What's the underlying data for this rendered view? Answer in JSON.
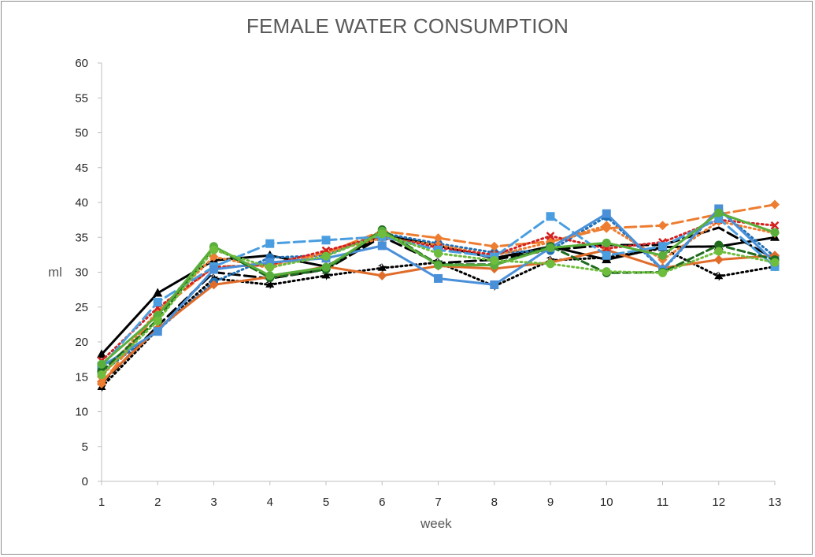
{
  "chart_data": {
    "type": "line",
    "title": "FEMALE WATER CONSUMPTION",
    "xlabel": "week",
    "ylabel": "ml",
    "ylim": [
      0,
      60
    ],
    "yticks": [
      "0",
      "5",
      "10",
      "15",
      "20",
      "25",
      "30",
      "35",
      "40",
      "45",
      "50",
      "55",
      "60"
    ],
    "grid": false,
    "categories": [
      "1",
      "2",
      "3",
      "4",
      "5",
      "6",
      "7",
      "8",
      "9",
      "10",
      "11",
      "12",
      "13"
    ],
    "series": [
      {
        "color": "#000000",
        "dash": "solid",
        "marker": "triangle",
        "values": [
          18.2,
          27.0,
          31.7,
          32.4,
          30.8,
          35.4,
          33.8,
          32.0,
          33.7,
          31.8,
          33.6,
          33.7,
          35.0
        ]
      },
      {
        "color": "#000000",
        "dash": "dot",
        "marker": "star",
        "values": [
          13.5,
          21.8,
          29.1,
          28.2,
          29.5,
          30.6,
          31.4,
          28.0,
          31.7,
          32.1,
          33.4,
          29.4,
          30.8
        ]
      },
      {
        "color": "#000000",
        "dash": "longdash",
        "marker": "none",
        "values": [
          14.0,
          22.3,
          30.0,
          29.1,
          30.4,
          35.1,
          31.3,
          31.8,
          33.2,
          33.9,
          33.9,
          36.4,
          31.9
        ]
      },
      {
        "color": "#1f6fb5",
        "dash": "dot",
        "marker": "circle",
        "values": [
          15.6,
          21.7,
          28.6,
          32.1,
          32.4,
          35.6,
          34.1,
          32.8,
          33.1,
          38.0,
          30.3,
          39.0,
          32.2
        ]
      },
      {
        "color": "#e06c2a",
        "dash": "solid",
        "marker": "diamond",
        "values": [
          14.3,
          21.9,
          28.2,
          29.3,
          30.8,
          29.5,
          30.9,
          30.5,
          31.4,
          33.2,
          30.6,
          31.8,
          32.4
        ]
      },
      {
        "color": "#ed7d31",
        "dash": "longdash",
        "marker": "diamond",
        "values": [
          14.0,
          24.3,
          30.8,
          31.0,
          32.8,
          35.9,
          34.9,
          33.7,
          34.4,
          36.3,
          36.7,
          38.3,
          39.7
        ]
      },
      {
        "color": "#ed7d31",
        "dash": "dot",
        "marker": "diamond",
        "values": [
          15.0,
          24.4,
          32.2,
          30.6,
          32.8,
          34.9,
          33.9,
          32.4,
          34.3,
          36.7,
          31.8,
          37.3,
          35.6
        ]
      },
      {
        "color": "#d42020",
        "dash": "dot",
        "marker": "x",
        "values": [
          17.3,
          24.9,
          30.7,
          31.1,
          33.1,
          35.2,
          33.5,
          32.5,
          35.2,
          33.4,
          34.3,
          37.5,
          36.7
        ]
      },
      {
        "color": "#4a9ee0",
        "dash": "longdash",
        "marker": "square",
        "values": [
          16.5,
          25.7,
          30.8,
          34.1,
          34.6,
          35.1,
          33.2,
          32.2,
          38.0,
          32.4,
          33.7,
          37.7,
          30.8
        ]
      },
      {
        "color": "#4a90d9",
        "dash": "solid",
        "marker": "square",
        "values": [
          16.5,
          21.5,
          30.4,
          31.4,
          32.0,
          33.8,
          29.1,
          28.2,
          33.5,
          38.4,
          30.4,
          39.1,
          31.4
        ]
      },
      {
        "color": "#1e6b1e",
        "dash": "dash",
        "marker": "circle",
        "values": [
          15.8,
          23.2,
          33.6,
          29.2,
          30.4,
          36.1,
          31.1,
          31.1,
          33.7,
          29.9,
          30.0,
          33.9,
          31.8
        ]
      },
      {
        "color": "#5aae3c",
        "dash": "solid",
        "marker": "circle",
        "values": [
          16.8,
          23.8,
          33.7,
          29.5,
          30.7,
          35.9,
          31.0,
          31.0,
          33.5,
          34.2,
          32.4,
          38.5,
          35.7
        ]
      },
      {
        "color": "#6fbd3d",
        "dash": "dot",
        "marker": "circle",
        "values": [
          15.3,
          23.0,
          33.2,
          30.7,
          32.3,
          35.5,
          32.7,
          31.7,
          31.2,
          30.1,
          29.9,
          33.0,
          31.4
        ]
      }
    ]
  }
}
